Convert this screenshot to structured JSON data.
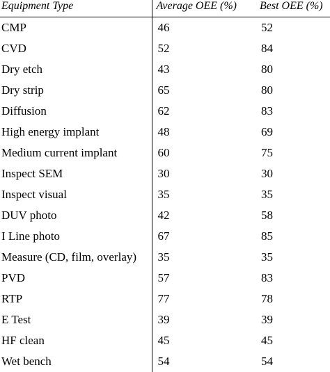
{
  "table": {
    "headers": [
      "Equipment Type",
      "Average OEE (%)",
      "Best OEE (%)"
    ],
    "rows": [
      [
        "CMP",
        "46",
        "52"
      ],
      [
        "CVD",
        "52",
        "84"
      ],
      [
        "Dry etch",
        "43",
        "80"
      ],
      [
        "Dry strip",
        "65",
        "80"
      ],
      [
        "Diffusion",
        "62",
        "83"
      ],
      [
        "High energy implant",
        "48",
        "69"
      ],
      [
        "Medium current implant",
        "60",
        "75"
      ],
      [
        "Inspect SEM",
        "30",
        "30"
      ],
      [
        "Inspect visual",
        "35",
        "35"
      ],
      [
        "DUV photo",
        "42",
        "58"
      ],
      [
        "I Line photo",
        "67",
        "85"
      ],
      [
        "Measure (CD, film, overlay)",
        "35",
        "35"
      ],
      [
        "PVD",
        "57",
        "83"
      ],
      [
        "RTP",
        "77",
        "78"
      ],
      [
        "E Test",
        "39",
        "39"
      ],
      [
        "HF clean",
        "45",
        "45"
      ],
      [
        "Wet bench",
        "54",
        "54"
      ]
    ]
  }
}
